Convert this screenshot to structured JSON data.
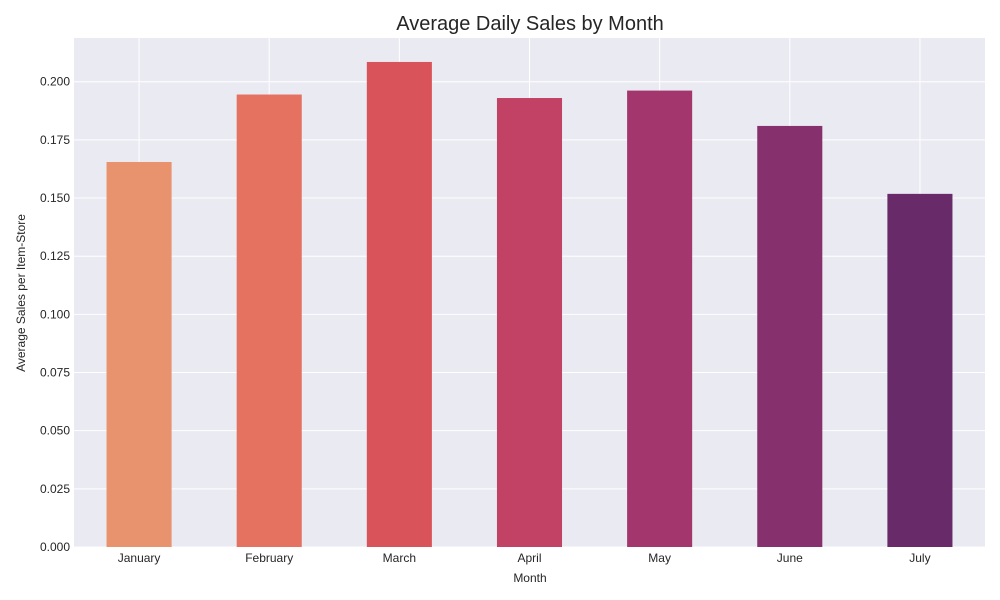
{
  "chart_data": {
    "type": "bar",
    "title": "Average Daily Sales by Month",
    "xlabel": "Month",
    "ylabel": "Average Sales per Item-Store",
    "categories": [
      "January",
      "February",
      "March",
      "April",
      "May",
      "June",
      "July"
    ],
    "values": [
      0.1655,
      0.1945,
      0.2085,
      0.193,
      0.1962,
      0.181,
      0.1518
    ],
    "colors": [
      "#e9936e",
      "#e57160",
      "#d9535b",
      "#c14265",
      "#a3376d",
      "#86306d",
      "#682a68"
    ],
    "ylim": [
      0,
      0.2188
    ],
    "yticks": [
      "0.000",
      "0.025",
      "0.050",
      "0.075",
      "0.100",
      "0.125",
      "0.150",
      "0.175",
      "0.200"
    ],
    "ytick_values": [
      0,
      0.025,
      0.05,
      0.075,
      0.1,
      0.125,
      0.15,
      0.175,
      0.2
    ],
    "grid": true,
    "background": "#eaeaf2",
    "grid_color": "#ffffff"
  }
}
